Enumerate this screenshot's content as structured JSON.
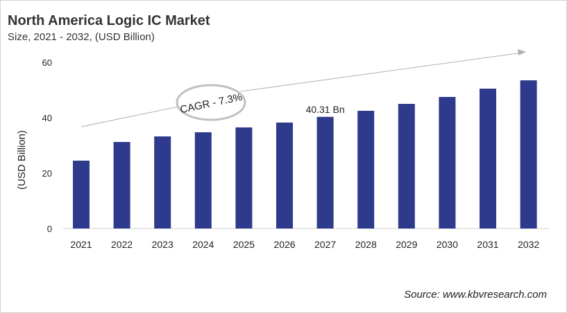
{
  "chart_data": {
    "type": "bar",
    "title": "North America Logic IC Market",
    "subtitle": "Size, 2021 - 2032, (USD Billion)",
    "xlabel": "",
    "ylabel": "(USD Billion)",
    "ylim": [
      0,
      60
    ],
    "yticks": [
      0,
      20,
      40,
      60
    ],
    "grid": false,
    "categories": [
      "2021",
      "2022",
      "2023",
      "2024",
      "2025",
      "2026",
      "2027",
      "2028",
      "2029",
      "2030",
      "2031",
      "2032"
    ],
    "values": [
      24.5,
      31.25,
      33.25,
      34.75,
      36.5,
      38.25,
      40.31,
      42.5,
      45.0,
      47.5,
      50.5,
      53.5
    ],
    "bar_color": "#2e3a8c",
    "data_labels": [
      {
        "category": "2027",
        "text": "40.31 Bn"
      }
    ],
    "annotation": "CAGR - 7.3%",
    "source": "Source: www.kbvresearch.com"
  }
}
